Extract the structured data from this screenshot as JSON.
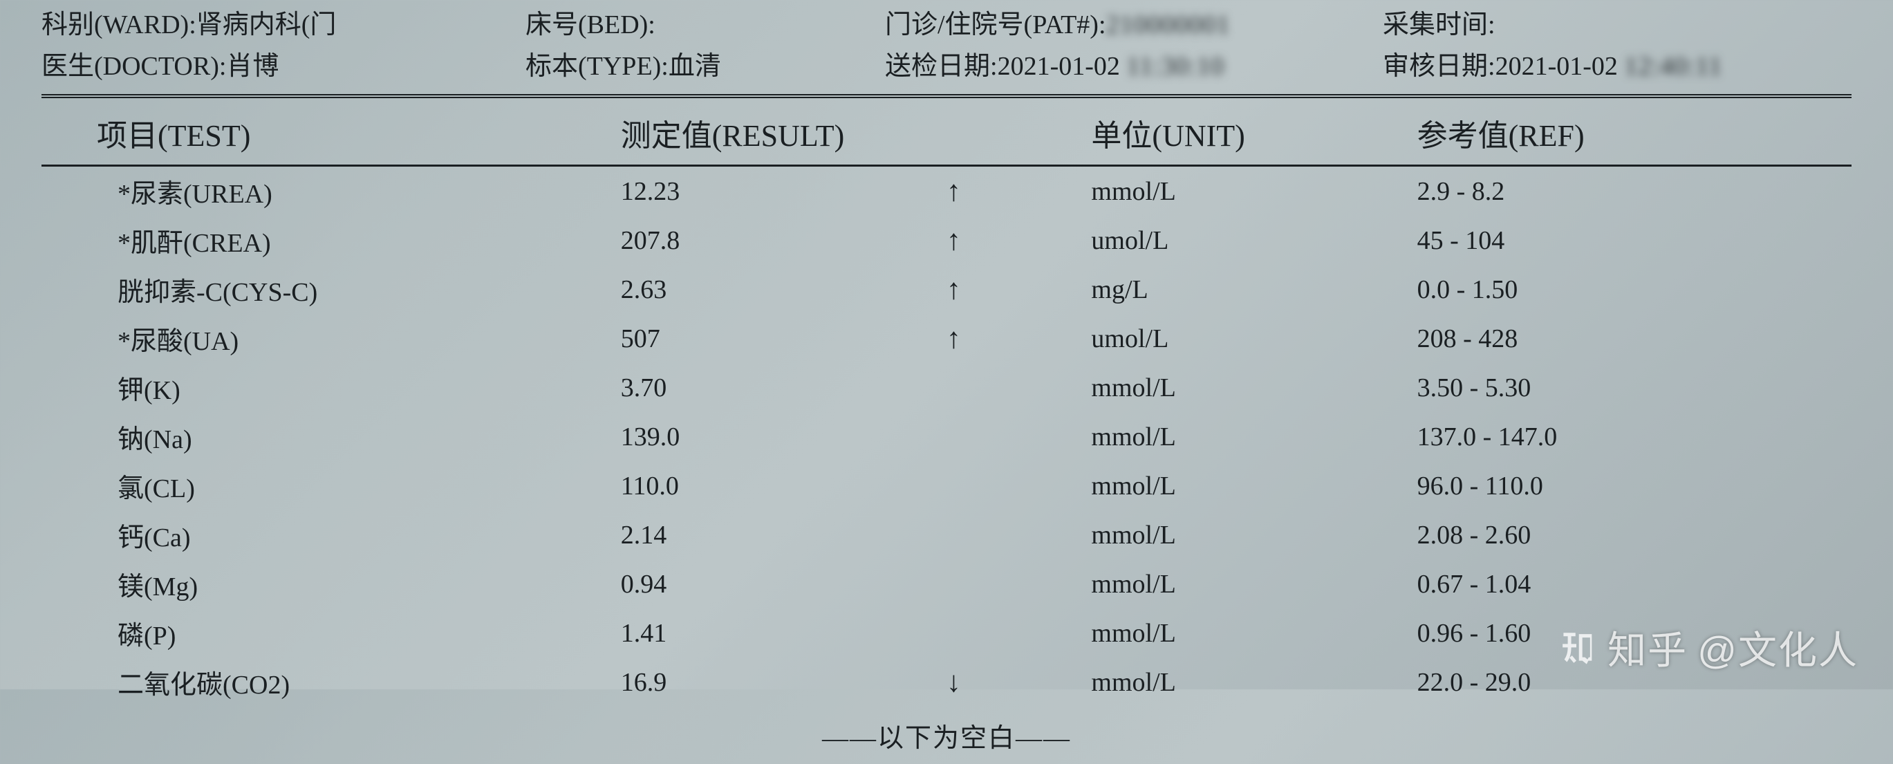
{
  "header": {
    "row1": {
      "ward_label": "科别(WARD):",
      "ward_value": "肾病内科(门",
      "bed_label": "床号(BED):",
      "bed_value": "",
      "pat_label": "门诊/住院号(PAT#):",
      "pat_value_blur": "210000001",
      "collect_label": "采集时间:",
      "collect_value_blur": ""
    },
    "row2": {
      "doctor_label": "医生(DOCTOR):",
      "doctor_value": "肖博",
      "type_label": "标本(TYPE):",
      "type_value": "血清",
      "send_label": "送检日期:",
      "send_value": "2021-01-02 ",
      "send_value_blur": "11:30:10",
      "review_label": "审核日期:",
      "review_value": "2021-01-02 ",
      "review_value_blur": "12:40:11"
    }
  },
  "columns": {
    "test": "项目(TEST)",
    "result": "测定值(RESULT)",
    "unit": "单位(UNIT)",
    "ref": "参考值(REF)"
  },
  "rows": [
    {
      "test": "*尿素(UREA)",
      "result": "12.23",
      "arrow": "↑",
      "unit": "mmol/L",
      "ref": "2.9 - 8.2"
    },
    {
      "test": "*肌酐(CREA)",
      "result": "207.8",
      "arrow": "↑",
      "unit": "umol/L",
      "ref": "45 - 104"
    },
    {
      "test": "胱抑素-C(CYS-C)",
      "result": "2.63",
      "arrow": "↑",
      "unit": "mg/L",
      "ref": "0.0 - 1.50"
    },
    {
      "test": "*尿酸(UA)",
      "result": "507",
      "arrow": "↑",
      "unit": "umol/L",
      "ref": "208 - 428"
    },
    {
      "test": "钾(K)",
      "result": "3.70",
      "arrow": "",
      "unit": "mmol/L",
      "ref": "3.50 - 5.30"
    },
    {
      "test": "钠(Na)",
      "result": "139.0",
      "arrow": "",
      "unit": "mmol/L",
      "ref": "137.0 - 147.0"
    },
    {
      "test": "氯(CL)",
      "result": "110.0",
      "arrow": "",
      "unit": "mmol/L",
      "ref": "96.0 - 110.0"
    },
    {
      "test": "钙(Ca)",
      "result": "2.14",
      "arrow": "",
      "unit": "mmol/L",
      "ref": "2.08 - 2.60"
    },
    {
      "test": "镁(Mg)",
      "result": "0.94",
      "arrow": "",
      "unit": "mmol/L",
      "ref": "0.67 - 1.04"
    },
    {
      "test": "磷(P)",
      "result": "1.41",
      "arrow": "",
      "unit": "mmol/L",
      "ref": "0.96 - 1.60"
    },
    {
      "test": "二氧化碳(CO2)",
      "result": "16.9",
      "arrow": "↓",
      "unit": "mmol/L",
      "ref": "22.0 - 29.0"
    }
  ],
  "footer_blank": "——以下为空白——",
  "watermark": {
    "brand": "知乎",
    "at": "@文化人"
  },
  "style": {
    "text_color": "#1a1f22",
    "bg_gradient_start": "#a8b5b8",
    "bg_gradient_end": "#a5b0b3",
    "header_fontsize": 38,
    "th_fontsize": 44,
    "cell_fontsize": 38,
    "watermark_color": "rgba(255,255,255,0.78)",
    "watermark_fontsize": 56,
    "rule_color": "#1a1f22"
  }
}
